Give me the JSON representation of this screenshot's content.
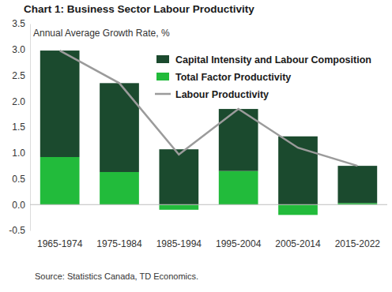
{
  "chart_data": {
    "type": "bar",
    "stacked": true,
    "title": "Chart 1: Business Sector Labour Productivity",
    "y_label": "Annual Average Growth Rate, %",
    "source": "Source: Statistics Canada, TD Economics.",
    "categories": [
      "1965-1974",
      "1975-1984",
      "1985-1994",
      "1995-2004",
      "2005-2014",
      "2015-2022"
    ],
    "series": [
      {
        "name": "Capital Intensity and Labour Composition",
        "type": "bar",
        "color": "#1b4a2e",
        "values": [
          2.06,
          1.72,
          1.07,
          1.2,
          1.32,
          0.72
        ]
      },
      {
        "name": "Total Factor Productivity",
        "type": "bar",
        "color": "#22bb3b",
        "values": [
          0.92,
          0.63,
          -0.1,
          0.65,
          -0.2,
          0.03
        ]
      },
      {
        "name": "Labour Productivity",
        "type": "line",
        "color": "#9b9b9b",
        "values": [
          2.98,
          2.35,
          0.97,
          1.85,
          1.1,
          0.75
        ]
      }
    ],
    "ylim": [
      -0.5,
      3.5
    ],
    "yticks": [
      -0.5,
      {
        "value": 0,
        "label": "0.0"
      },
      0.5,
      {
        "value": 1,
        "label": "1.0"
      },
      1.5,
      {
        "value": 2,
        "label": "2.0"
      },
      2.5,
      {
        "value": 3,
        "label": "3.0"
      },
      3.5
    ],
    "grid": false
  }
}
